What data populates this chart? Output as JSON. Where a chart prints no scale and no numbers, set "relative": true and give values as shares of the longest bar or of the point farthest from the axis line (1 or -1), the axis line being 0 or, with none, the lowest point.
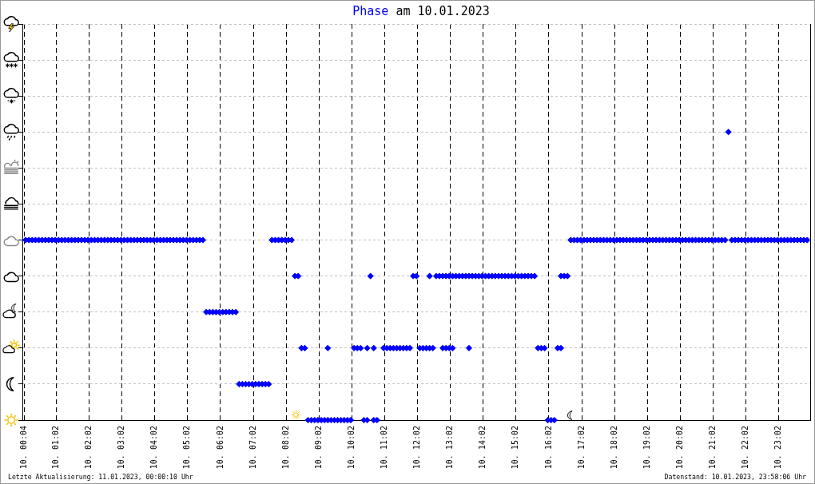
{
  "chart_data": {
    "type": "scatter",
    "title": "Phase am 10.01.2023",
    "relative": true,
    "x": [
      "2023-01-10T00:06",
      "2023-01-10T00:12",
      "2023-01-10T00:18",
      "2023-01-10T00:24",
      "2023-01-10T00:30",
      "2023-01-10T00:36",
      "2023-01-10T00:42",
      "2023-01-10T00:48",
      "2023-01-10T00:54",
      "2023-01-10T01:00",
      "2023-01-10T01:06",
      "2023-01-10T01:12",
      "2023-01-10T01:18",
      "2023-01-10T01:24",
      "2023-01-10T01:30",
      "2023-01-10T01:36",
      "2023-01-10T01:42",
      "2023-01-10T01:48",
      "2023-01-10T01:54",
      "2023-01-10T02:00",
      "2023-01-10T02:06",
      "2023-01-10T02:12",
      "2023-01-10T02:18",
      "2023-01-10T02:24",
      "2023-01-10T02:30",
      "2023-01-10T02:36",
      "2023-01-10T02:42",
      "2023-01-10T02:48",
      "2023-01-10T02:54",
      "2023-01-10T03:00",
      "2023-01-10T03:06",
      "2023-01-10T03:12",
      "2023-01-10T03:18",
      "2023-01-10T03:24",
      "2023-01-10T03:30",
      "2023-01-10T03:36",
      "2023-01-10T03:42",
      "2023-01-10T03:48",
      "2023-01-10T03:54",
      "2023-01-10T04:00",
      "2023-01-10T04:06",
      "2023-01-10T04:12",
      "2023-01-10T04:18",
      "2023-01-10T04:24",
      "2023-01-10T04:30",
      "2023-01-10T04:36",
      "2023-01-10T04:42",
      "2023-01-10T04:48",
      "2023-01-10T04:54",
      "2023-01-10T05:00",
      "2023-01-10T05:06",
      "2023-01-10T05:12",
      "2023-01-10T05:18",
      "2023-01-10T05:24",
      "2023-01-10T05:30",
      "2023-01-10T05:36",
      "2023-01-10T05:42",
      "2023-01-10T05:48",
      "2023-01-10T05:54",
      "2023-01-10T06:00",
      "2023-01-10T06:06",
      "2023-01-10T06:12",
      "2023-01-10T06:18",
      "2023-01-10T06:24",
      "2023-01-10T06:30",
      "2023-01-10T06:36",
      "2023-01-10T06:42",
      "2023-01-10T06:48",
      "2023-01-10T06:54",
      "2023-01-10T07:00",
      "2023-01-10T07:06",
      "2023-01-10T07:12",
      "2023-01-10T07:18",
      "2023-01-10T07:24",
      "2023-01-10T07:30",
      "2023-01-10T07:36",
      "2023-01-10T07:42",
      "2023-01-10T07:48",
      "2023-01-10T07:54",
      "2023-01-10T08:00",
      "2023-01-10T08:06",
      "2023-01-10T08:12",
      "2023-01-10T08:18",
      "2023-01-10T08:24",
      "2023-01-10T08:30",
      "2023-01-10T08:36",
      "2023-01-10T08:42",
      "2023-01-10T08:48",
      "2023-01-10T08:54",
      "2023-01-10T09:00",
      "2023-01-10T09:06",
      "2023-01-10T09:12",
      "2023-01-10T09:18",
      "2023-01-10T09:24",
      "2023-01-10T09:30",
      "2023-01-10T09:36",
      "2023-01-10T09:42",
      "2023-01-10T09:48",
      "2023-01-10T09:54",
      "2023-01-10T10:00",
      "2023-01-10T09:18",
      "2023-01-10T10:06",
      "2023-01-10T10:12",
      "2023-01-10T10:18",
      "2023-01-10T10:24",
      "2023-01-10T10:30",
      "2023-01-10T10:30",
      "2023-01-10T10:36",
      "2023-01-10T10:42",
      "2023-01-10T10:42",
      "2023-01-10T10:48",
      "2023-01-10T11:00",
      "2023-01-10T11:06",
      "2023-01-10T11:12",
      "2023-01-10T11:18",
      "2023-01-10T11:24",
      "2023-01-10T11:30",
      "2023-01-10T11:36",
      "2023-01-10T11:42",
      "2023-01-10T11:48",
      "2023-01-10T11:54",
      "2023-01-10T12:00",
      "2023-01-10T12:06",
      "2023-01-10T12:12",
      "2023-01-10T12:18",
      "2023-01-10T12:24",
      "2023-01-10T12:30",
      "2023-01-10T12:24",
      "2023-01-10T12:36",
      "2023-01-10T12:42",
      "2023-01-10T12:48",
      "2023-01-10T12:54",
      "2023-01-10T13:00",
      "2023-01-10T13:06",
      "2023-01-10T13:12",
      "2023-01-10T13:18",
      "2023-01-10T13:24",
      "2023-01-10T13:30",
      "2023-01-10T13:36",
      "2023-01-10T13:42",
      "2023-01-10T13:48",
      "2023-01-10T13:54",
      "2023-01-10T14:00",
      "2023-01-10T14:06",
      "2023-01-10T14:12",
      "2023-01-10T14:18",
      "2023-01-10T14:24",
      "2023-01-10T14:30",
      "2023-01-10T14:36",
      "2023-01-10T14:42",
      "2023-01-10T14:48",
      "2023-01-10T14:54",
      "2023-01-10T15:00",
      "2023-01-10T15:06",
      "2023-01-10T15:12",
      "2023-01-10T15:18",
      "2023-01-10T15:24",
      "2023-01-10T15:30",
      "2023-01-10T15:36",
      "2023-01-10T12:48",
      "2023-01-10T12:54",
      "2023-01-10T13:00",
      "2023-01-10T13:06",
      "2023-01-10T13:36",
      "2023-01-10T15:42",
      "2023-01-10T15:48",
      "2023-01-10T15:54",
      "2023-01-10T16:00",
      "2023-01-10T16:06",
      "2023-01-10T16:12",
      "2023-01-10T16:18",
      "2023-01-10T16:24",
      "2023-01-10T16:24",
      "2023-01-10T16:30",
      "2023-01-10T16:36",
      "2023-01-10T16:42",
      "2023-01-10T16:48",
      "2023-01-10T16:54",
      "2023-01-10T17:00",
      "2023-01-10T17:06",
      "2023-01-10T17:12",
      "2023-01-10T17:18",
      "2023-01-10T17:24",
      "2023-01-10T17:30",
      "2023-01-10T17:36",
      "2023-01-10T17:42",
      "2023-01-10T17:48",
      "2023-01-10T17:54",
      "2023-01-10T18:00",
      "2023-01-10T18:06",
      "2023-01-10T18:12",
      "2023-01-10T18:18",
      "2023-01-10T18:24",
      "2023-01-10T18:30",
      "2023-01-10T18:36",
      "2023-01-10T18:42",
      "2023-01-10T18:48",
      "2023-01-10T18:54",
      "2023-01-10T19:00",
      "2023-01-10T19:06",
      "2023-01-10T19:12",
      "2023-01-10T19:18",
      "2023-01-10T19:24",
      "2023-01-10T19:30",
      "2023-01-10T19:36",
      "2023-01-10T19:42",
      "2023-01-10T19:48",
      "2023-01-10T19:54",
      "2023-01-10T20:00",
      "2023-01-10T20:06",
      "2023-01-10T20:12",
      "2023-01-10T20:18",
      "2023-01-10T20:24",
      "2023-01-10T20:30",
      "2023-01-10T20:36",
      "2023-01-10T20:42",
      "2023-01-10T20:48",
      "2023-01-10T20:54",
      "2023-01-10T21:00",
      "2023-01-10T21:06",
      "2023-01-10T21:12",
      "2023-01-10T21:18",
      "2023-01-10T21:24",
      "2023-01-10T21:30",
      "2023-01-10T21:36",
      "2023-01-10T21:42",
      "2023-01-10T21:48",
      "2023-01-10T21:54",
      "2023-01-10T22:00",
      "2023-01-10T22:06",
      "2023-01-10T22:12",
      "2023-01-10T22:18",
      "2023-01-10T22:24",
      "2023-01-10T22:30",
      "2023-01-10T22:36",
      "2023-01-10T22:42",
      "2023-01-10T22:48",
      "2023-01-10T22:54",
      "2023-01-10T23:00",
      "2023-01-10T23:06",
      "2023-01-10T23:12",
      "2023-01-10T23:18",
      "2023-01-10T23:24",
      "2023-01-10T23:30",
      "2023-01-10T23:36",
      "2023-01-10T23:42",
      "2023-01-10T23:48",
      "2023-01-10T23:54"
    ],
    "values": [
      0.625,
      0.625,
      0.625,
      0.625,
      0.625,
      0.625,
      0.625,
      0.625,
      0.625,
      0.625,
      0.625,
      0.625,
      0.625,
      0.625,
      0.625,
      0.625,
      0.625,
      0.625,
      0.625,
      0.625,
      0.625,
      0.625,
      0.625,
      0.625,
      0.625,
      0.625,
      0.625,
      0.625,
      0.625,
      0.625,
      0.625,
      0.625,
      0.625,
      0.625,
      0.625,
      0.625,
      0.625,
      0.625,
      0.625,
      0.625,
      0.625,
      0.625,
      0.625,
      0.625,
      0.625,
      0.625,
      0.625,
      0.625,
      0.625,
      0.625,
      0.625,
      0.625,
      0.625,
      0.625,
      0.625,
      0.375,
      0.375,
      0.375,
      0.375,
      0.375,
      0.375,
      0.375,
      0.375,
      0.375,
      0.375,
      0.125,
      0.125,
      0.125,
      0.125,
      0.125,
      0.125,
      0.125,
      0.125,
      0.125,
      0.125,
      0.625,
      0.625,
      0.625,
      0.625,
      0.625,
      0.625,
      0.625,
      0.5,
      0.5,
      0.25,
      0.25,
      0,
      0,
      0,
      0,
      0,
      0,
      0,
      0,
      0,
      0,
      0,
      0,
      0,
      0,
      0.25,
      0.25,
      0.25,
      0.25,
      0,
      0,
      0.25,
      0.5,
      0.25,
      0,
      0,
      0.25,
      0.25,
      0.25,
      0.25,
      0.25,
      0.25,
      0.25,
      0.25,
      0.25,
      0.5,
      0.5,
      0.25,
      0.25,
      0.25,
      0.25,
      0.25,
      0.5,
      0.5,
      0.5,
      0.5,
      0.5,
      0.5,
      0.5,
      0.5,
      0.5,
      0.5,
      0.5,
      0.5,
      0.5,
      0.5,
      0.5,
      0.5,
      0.5,
      0.5,
      0.5,
      0.5,
      0.5,
      0.5,
      0.5,
      0.5,
      0.5,
      0.5,
      0.5,
      0.5,
      0.5,
      0.5,
      0.5,
      0.5,
      0.25,
      0.25,
      0.25,
      0.25,
      0.25,
      0.25,
      0.25,
      0.25,
      0,
      0,
      0,
      0.25,
      0.25,
      0.5,
      0.5,
      0.5,
      0.625,
      0.625,
      0.625,
      0.625,
      0.625,
      0.625,
      0.625,
      0.625,
      0.625,
      0.625,
      0.625,
      0.625,
      0.625,
      0.625,
      0.625,
      0.625,
      0.625,
      0.625,
      0.625,
      0.625,
      0.625,
      0.625,
      0.625,
      0.625,
      0.625,
      0.625,
      0.625,
      0.625,
      0.625,
      0.625,
      0.625,
      0.625,
      0.625,
      0.625,
      0.625,
      0.625,
      0.625,
      0.625,
      0.625,
      0.625,
      0.625,
      0.625,
      0.625,
      0.625,
      0.625,
      0.625,
      0.625,
      0.625,
      1,
      0.625,
      0.625,
      0.625,
      0.625,
      0.625,
      0.625,
      0.625,
      0.625,
      0.625,
      0.625,
      0.625,
      0.625,
      0.625,
      0.625,
      0.625,
      0.625,
      0.625,
      0.625,
      0.625,
      0.625,
      0.625,
      0.625,
      0.625,
      0.625
    ],
    "color": "#0000ff",
    "marker": "diamond",
    "xlim": [
      "2023-01-10T00:00",
      "2023-01-11T00:00"
    ],
    "xticks": [
      {
        "value": "2023-01-10T00:04",
        "label": "10. 00:04"
      },
      {
        "value": "2023-01-10T01:02",
        "label": "10. 01:02"
      },
      {
        "value": "2023-01-10T02:02",
        "label": "10. 02:02"
      },
      {
        "value": "2023-01-10T03:02",
        "label": "10. 03:02"
      },
      {
        "value": "2023-01-10T04:02",
        "label": "10. 04:02"
      },
      {
        "value": "2023-01-10T05:02",
        "label": "10. 05:02"
      },
      {
        "value": "2023-01-10T06:02",
        "label": "10. 06:02"
      },
      {
        "value": "2023-01-10T07:02",
        "label": "10. 07:02"
      },
      {
        "value": "2023-01-10T08:02",
        "label": "10. 08:02"
      },
      {
        "value": "2023-01-10T09:02",
        "label": "10. 09:02"
      },
      {
        "value": "2023-01-10T10:02",
        "label": "10. 10:02"
      },
      {
        "value": "2023-01-10T11:02",
        "label": "10. 11:02"
      },
      {
        "value": "2023-01-10T12:02",
        "label": "10. 12:02"
      },
      {
        "value": "2023-01-10T13:02",
        "label": "10. 13:02"
      },
      {
        "value": "2023-01-10T14:02",
        "label": "10. 14:02"
      },
      {
        "value": "2023-01-10T15:02",
        "label": "10. 15:02"
      },
      {
        "value": "2023-01-10T16:02",
        "label": "10. 16:02"
      },
      {
        "value": "2023-01-10T17:02",
        "label": "10. 17:02"
      },
      {
        "value": "2023-01-10T18:02",
        "label": "10. 18:02"
      },
      {
        "value": "2023-01-10T19:02",
        "label": "10. 19:02"
      },
      {
        "value": "2023-01-10T20:02",
        "label": "10. 20:02"
      },
      {
        "value": "2023-01-10T21:02",
        "label": "10. 21:02"
      },
      {
        "value": "2023-01-10T22:02",
        "label": "10. 22:02"
      },
      {
        "value": "2023-01-10T23:02",
        "label": "10. 23:02"
      }
    ],
    "grid": true,
    "annotations": [
      "Letzte Aktualisierung: 11.01.2023, 00:00:10 Uhr",
      "Datenstand: 10.01.2023, 23:58:06 Uhr"
    ]
  }
}
